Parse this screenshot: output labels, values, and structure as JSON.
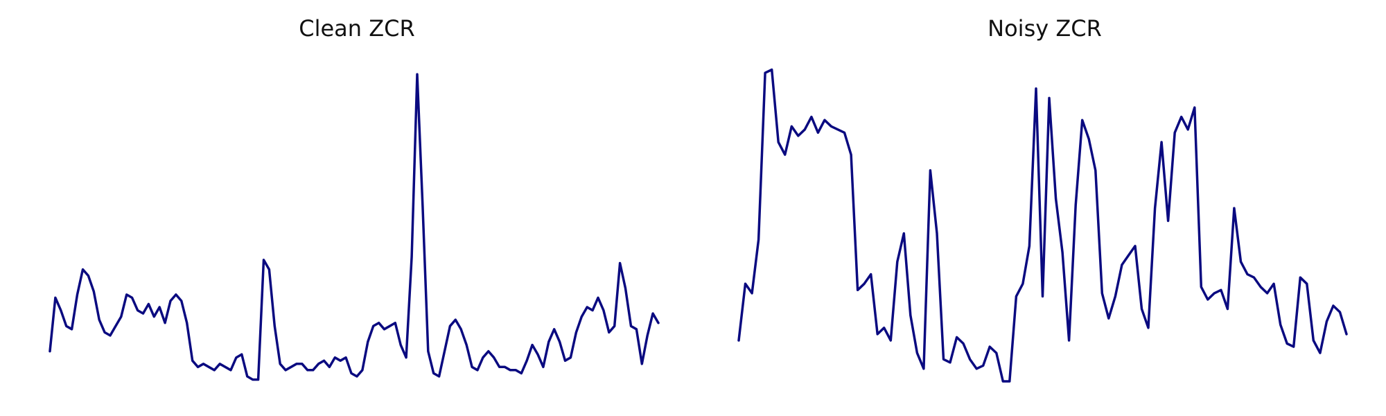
{
  "chart_data": [
    {
      "type": "line",
      "title": "Clean ZCR",
      "color": "#0a0a80",
      "grid": false,
      "axes_visible": false,
      "ylim": [
        0,
        1
      ],
      "values": [
        0.1,
        0.27,
        0.23,
        0.18,
        0.17,
        0.28,
        0.36,
        0.34,
        0.29,
        0.2,
        0.16,
        0.15,
        0.18,
        0.21,
        0.28,
        0.27,
        0.23,
        0.22,
        0.25,
        0.21,
        0.24,
        0.19,
        0.26,
        0.28,
        0.26,
        0.19,
        0.07,
        0.05,
        0.06,
        0.05,
        0.04,
        0.06,
        0.05,
        0.04,
        0.08,
        0.09,
        0.02,
        0.01,
        0.01,
        0.39,
        0.36,
        0.18,
        0.06,
        0.04,
        0.05,
        0.06,
        0.06,
        0.04,
        0.04,
        0.06,
        0.07,
        0.05,
        0.08,
        0.07,
        0.08,
        0.03,
        0.02,
        0.04,
        0.13,
        0.18,
        0.19,
        0.17,
        0.18,
        0.19,
        0.12,
        0.08,
        0.4,
        0.98,
        0.56,
        0.1,
        0.03,
        0.02,
        0.1,
        0.18,
        0.2,
        0.17,
        0.12,
        0.05,
        0.04,
        0.08,
        0.1,
        0.08,
        0.05,
        0.05,
        0.04,
        0.04,
        0.03,
        0.07,
        0.12,
        0.09,
        0.05,
        0.13,
        0.17,
        0.13,
        0.07,
        0.08,
        0.16,
        0.21,
        0.24,
        0.23,
        0.27,
        0.23,
        0.16,
        0.18,
        0.38,
        0.3,
        0.18,
        0.17,
        0.06,
        0.15,
        0.22,
        0.19
      ]
    },
    {
      "type": "line",
      "title": "Noisy ZCR",
      "color": "#0a0a80",
      "grid": false,
      "axes_visible": false,
      "ylim": [
        0,
        1
      ],
      "values": [
        0.13,
        0.31,
        0.28,
        0.45,
        0.98,
        0.99,
        0.76,
        0.72,
        0.81,
        0.78,
        0.8,
        0.84,
        0.79,
        0.83,
        0.81,
        0.8,
        0.79,
        0.72,
        0.29,
        0.31,
        0.34,
        0.15,
        0.17,
        0.13,
        0.38,
        0.47,
        0.21,
        0.09,
        0.04,
        0.67,
        0.47,
        0.07,
        0.06,
        0.14,
        0.12,
        0.07,
        0.04,
        0.05,
        0.11,
        0.09,
        0.0,
        0.0,
        0.27,
        0.31,
        0.43,
        0.93,
        0.27,
        0.9,
        0.58,
        0.41,
        0.13,
        0.56,
        0.83,
        0.77,
        0.67,
        0.28,
        0.2,
        0.27,
        0.37,
        0.4,
        0.43,
        0.23,
        0.17,
        0.55,
        0.76,
        0.51,
        0.79,
        0.84,
        0.8,
        0.87,
        0.3,
        0.26,
        0.28,
        0.29,
        0.23,
        0.55,
        0.38,
        0.34,
        0.33,
        0.3,
        0.28,
        0.31,
        0.18,
        0.12,
        0.11,
        0.33,
        0.31,
        0.13,
        0.09,
        0.19,
        0.24,
        0.22,
        0.15
      ]
    }
  ]
}
